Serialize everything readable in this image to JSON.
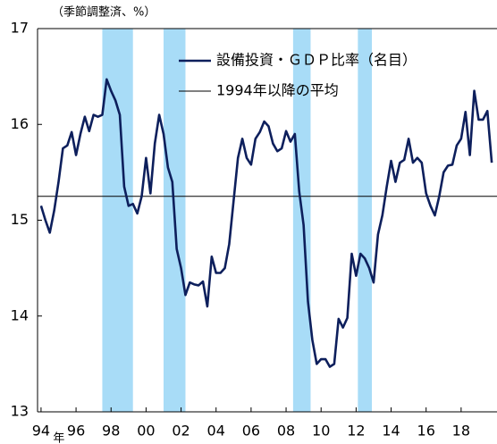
{
  "chart_data": {
    "type": "line",
    "y_unit_label": "（季節調整済、%）",
    "x_unit_label": "年",
    "x": [
      1994,
      1994.25,
      1994.5,
      1994.75,
      1995,
      1995.25,
      1995.5,
      1995.75,
      1996,
      1996.25,
      1996.5,
      1996.75,
      1997,
      1997.25,
      1997.5,
      1997.75,
      1998,
      1998.25,
      1998.5,
      1998.75,
      1999,
      1999.25,
      1999.5,
      1999.75,
      2000,
      2000.25,
      2000.5,
      2000.75,
      2001,
      2001.25,
      2001.5,
      2001.75,
      2002,
      2002.25,
      2002.5,
      2002.75,
      2003,
      2003.25,
      2003.5,
      2003.75,
      2004,
      2004.25,
      2004.5,
      2004.75,
      2005,
      2005.25,
      2005.5,
      2005.75,
      2006,
      2006.25,
      2006.5,
      2006.75,
      2007,
      2007.25,
      2007.5,
      2007.75,
      2008,
      2008.25,
      2008.5,
      2008.75,
      2009,
      2009.25,
      2009.5,
      2009.75,
      2010,
      2010.25,
      2010.5,
      2010.75,
      2011,
      2011.25,
      2011.5,
      2011.75,
      2012,
      2012.25,
      2012.5,
      2012.75,
      2013,
      2013.25,
      2013.5,
      2013.75,
      2014,
      2014.25,
      2014.5,
      2014.75,
      2015,
      2015.25,
      2015.5,
      2015.75,
      2016,
      2016.25,
      2016.5,
      2016.75,
      2017,
      2017.25,
      2017.5,
      2017.75,
      2018,
      2018.25,
      2018.5,
      2018.75,
      2019,
      2019.25,
      2019.5,
      2019.75
    ],
    "series": [
      {
        "name": "設備投資・ＧＤＰ比率（名目）",
        "color": "#0d1f5c",
        "values": [
          15.15,
          15.0,
          14.87,
          15.1,
          15.4,
          15.75,
          15.78,
          15.92,
          15.68,
          15.9,
          16.08,
          15.93,
          16.1,
          16.08,
          16.1,
          16.47,
          16.35,
          16.25,
          16.1,
          15.35,
          15.15,
          15.17,
          15.07,
          15.25,
          15.65,
          15.28,
          15.8,
          16.1,
          15.9,
          15.55,
          15.4,
          14.7,
          14.5,
          14.22,
          14.35,
          14.33,
          14.32,
          14.36,
          14.1,
          14.62,
          14.45,
          14.45,
          14.5,
          14.75,
          15.2,
          15.65,
          15.85,
          15.65,
          15.58,
          15.85,
          15.92,
          16.03,
          15.98,
          15.8,
          15.72,
          15.75,
          15.93,
          15.82,
          15.9,
          15.3,
          14.95,
          14.15,
          13.75,
          13.5,
          13.55,
          13.55,
          13.47,
          13.5,
          13.97,
          13.88,
          13.98,
          14.65,
          14.42,
          14.65,
          14.6,
          14.5,
          14.35,
          14.85,
          15.05,
          15.35,
          15.62,
          15.4,
          15.6,
          15.63,
          15.85,
          15.6,
          15.65,
          15.6,
          15.28,
          15.15,
          15.05,
          15.25,
          15.5,
          15.57,
          15.58,
          15.78,
          15.85,
          16.13,
          15.68,
          16.35,
          16.05,
          16.05,
          16.14,
          15.6
        ]
      }
    ],
    "reference_line": {
      "name": "1994年以降の平均",
      "value": 15.25,
      "color": "#000000"
    },
    "shaded_periods": [
      [
        1997.5,
        1999.25
      ],
      [
        2001.0,
        2002.25
      ],
      [
        2008.4,
        2009.4
      ],
      [
        2012.1,
        2012.9
      ]
    ],
    "shade_color": "#a8dcf7",
    "xlim": [
      1993.8,
      2020.05
    ],
    "xticks": [
      {
        "value": 1994,
        "label": "94"
      },
      {
        "value": 1996,
        "label": "96"
      },
      {
        "value": 1998,
        "label": "98"
      },
      {
        "value": 2000,
        "label": "00"
      },
      {
        "value": 2002,
        "label": "02"
      },
      {
        "value": 2004,
        "label": "04"
      },
      {
        "value": 2006,
        "label": "06"
      },
      {
        "value": 2008,
        "label": "08"
      },
      {
        "value": 2010,
        "label": "10"
      },
      {
        "value": 2012,
        "label": "12"
      },
      {
        "value": 2014,
        "label": "14"
      },
      {
        "value": 2016,
        "label": "16"
      },
      {
        "value": 2018,
        "label": "18"
      }
    ],
    "ylim": [
      13,
      17
    ],
    "yticks": [
      13,
      14,
      15,
      16,
      17
    ]
  }
}
